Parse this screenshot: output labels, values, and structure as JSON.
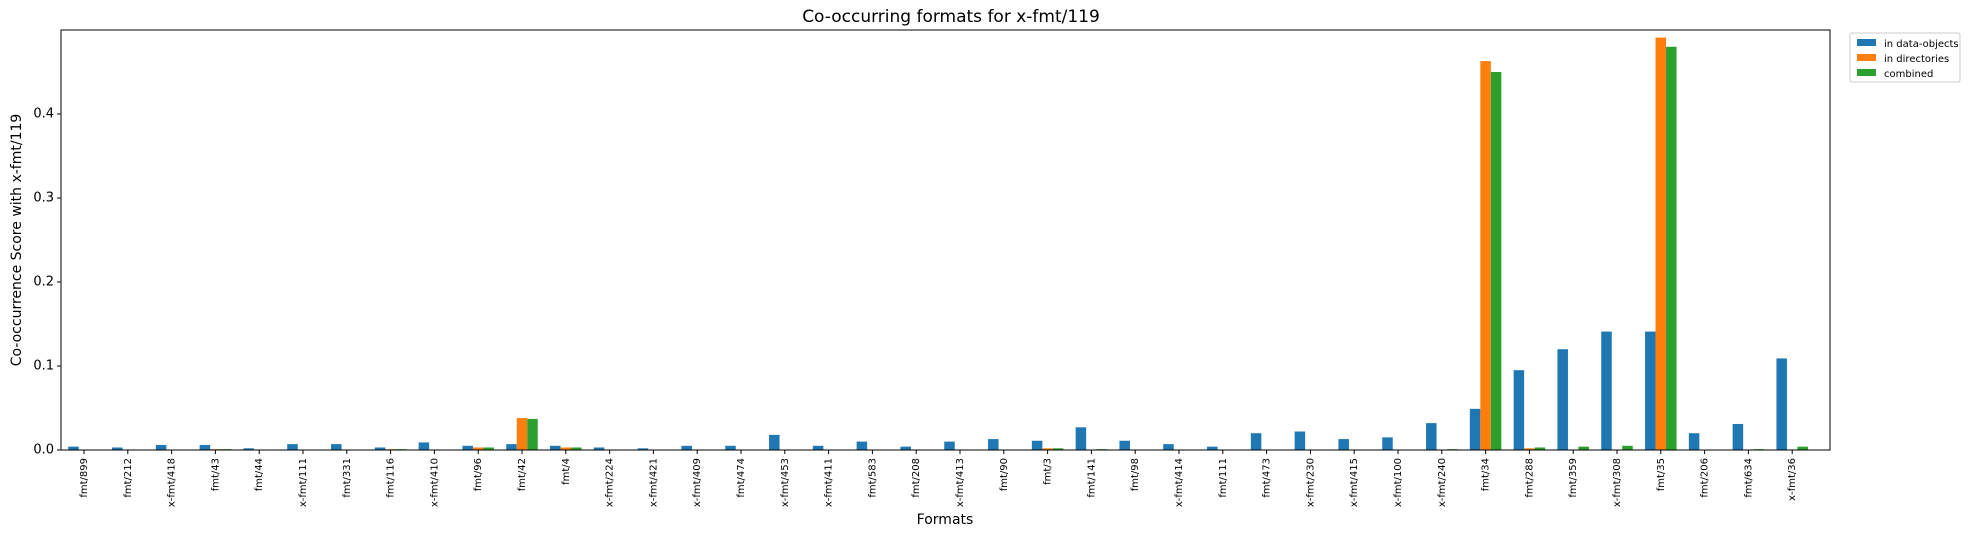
{
  "chart_data": {
    "type": "bar",
    "title": "Co-occurring formats for x-fmt/119",
    "xlabel": "Formats",
    "ylabel": "Co-occurrence Score with x-fmt/119",
    "ylim": [
      0,
      0.5
    ],
    "yticks": [
      0.0,
      0.1,
      0.2,
      0.3,
      0.4
    ],
    "ytick_labels": [
      "0.0",
      "0.1",
      "0.2",
      "0.3",
      "0.4"
    ],
    "grid": false,
    "legend_position": "outside-top-right",
    "categories": [
      "fmt/899",
      "fmt/212",
      "x-fmt/418",
      "fmt/43",
      "fmt/44",
      "x-fmt/111",
      "fmt/331",
      "fmt/116",
      "x-fmt/410",
      "fmt/96",
      "fmt/42",
      "fmt/4",
      "x-fmt/224",
      "x-fmt/421",
      "x-fmt/409",
      "fmt/474",
      "x-fmt/453",
      "x-fmt/411",
      "fmt/583",
      "fmt/208",
      "x-fmt/413",
      "fmt/90",
      "fmt/3",
      "fmt/141",
      "fmt/98",
      "x-fmt/414",
      "fmt/111",
      "fmt/473",
      "x-fmt/230",
      "x-fmt/415",
      "x-fmt/100",
      "x-fmt/240",
      "fmt/34",
      "fmt/288",
      "fmt/359",
      "x-fmt/308",
      "fmt/35",
      "fmt/206",
      "fmt/634",
      "x-fmt/36"
    ],
    "series": [
      {
        "name": "in data-objects",
        "color": "#1f77b4",
        "values": [
          0.004,
          0.003,
          0.006,
          0.006,
          0.002,
          0.007,
          0.007,
          0.003,
          0.009,
          0.005,
          0.007,
          0.005,
          0.003,
          0.002,
          0.005,
          0.005,
          0.018,
          0.005,
          0.01,
          0.004,
          0.01,
          0.013,
          0.011,
          0.027,
          0.011,
          0.007,
          0.004,
          0.02,
          0.022,
          0.013,
          0.015,
          0.032,
          0.049,
          0.095,
          0.12,
          0.141,
          0.141,
          0.02,
          0.031,
          0.109
        ]
      },
      {
        "name": "in directories",
        "color": "#ff7f0e",
        "values": [
          0,
          0,
          0,
          0.001,
          0,
          0,
          0,
          0.001,
          0,
          0.003,
          0.038,
          0.003,
          0,
          0,
          0,
          0,
          0,
          0,
          0,
          0,
          0,
          0,
          0.002,
          0,
          0,
          0,
          0,
          0,
          0,
          0,
          0,
          0,
          0.463,
          0.002,
          0,
          0,
          0.491,
          0,
          0,
          0
        ]
      },
      {
        "name": "combined",
        "color": "#2ca02c",
        "values": [
          0,
          0,
          0,
          0.001,
          0,
          0,
          0,
          0.001,
          0,
          0.003,
          0.037,
          0.003,
          0,
          0,
          0,
          0,
          0,
          0,
          0,
          0,
          0,
          0,
          0.002,
          0.001,
          0,
          0,
          0,
          0,
          0,
          0,
          0,
          0.001,
          0.45,
          0.003,
          0.004,
          0.005,
          0.48,
          0,
          0.001,
          0.004
        ]
      }
    ]
  }
}
